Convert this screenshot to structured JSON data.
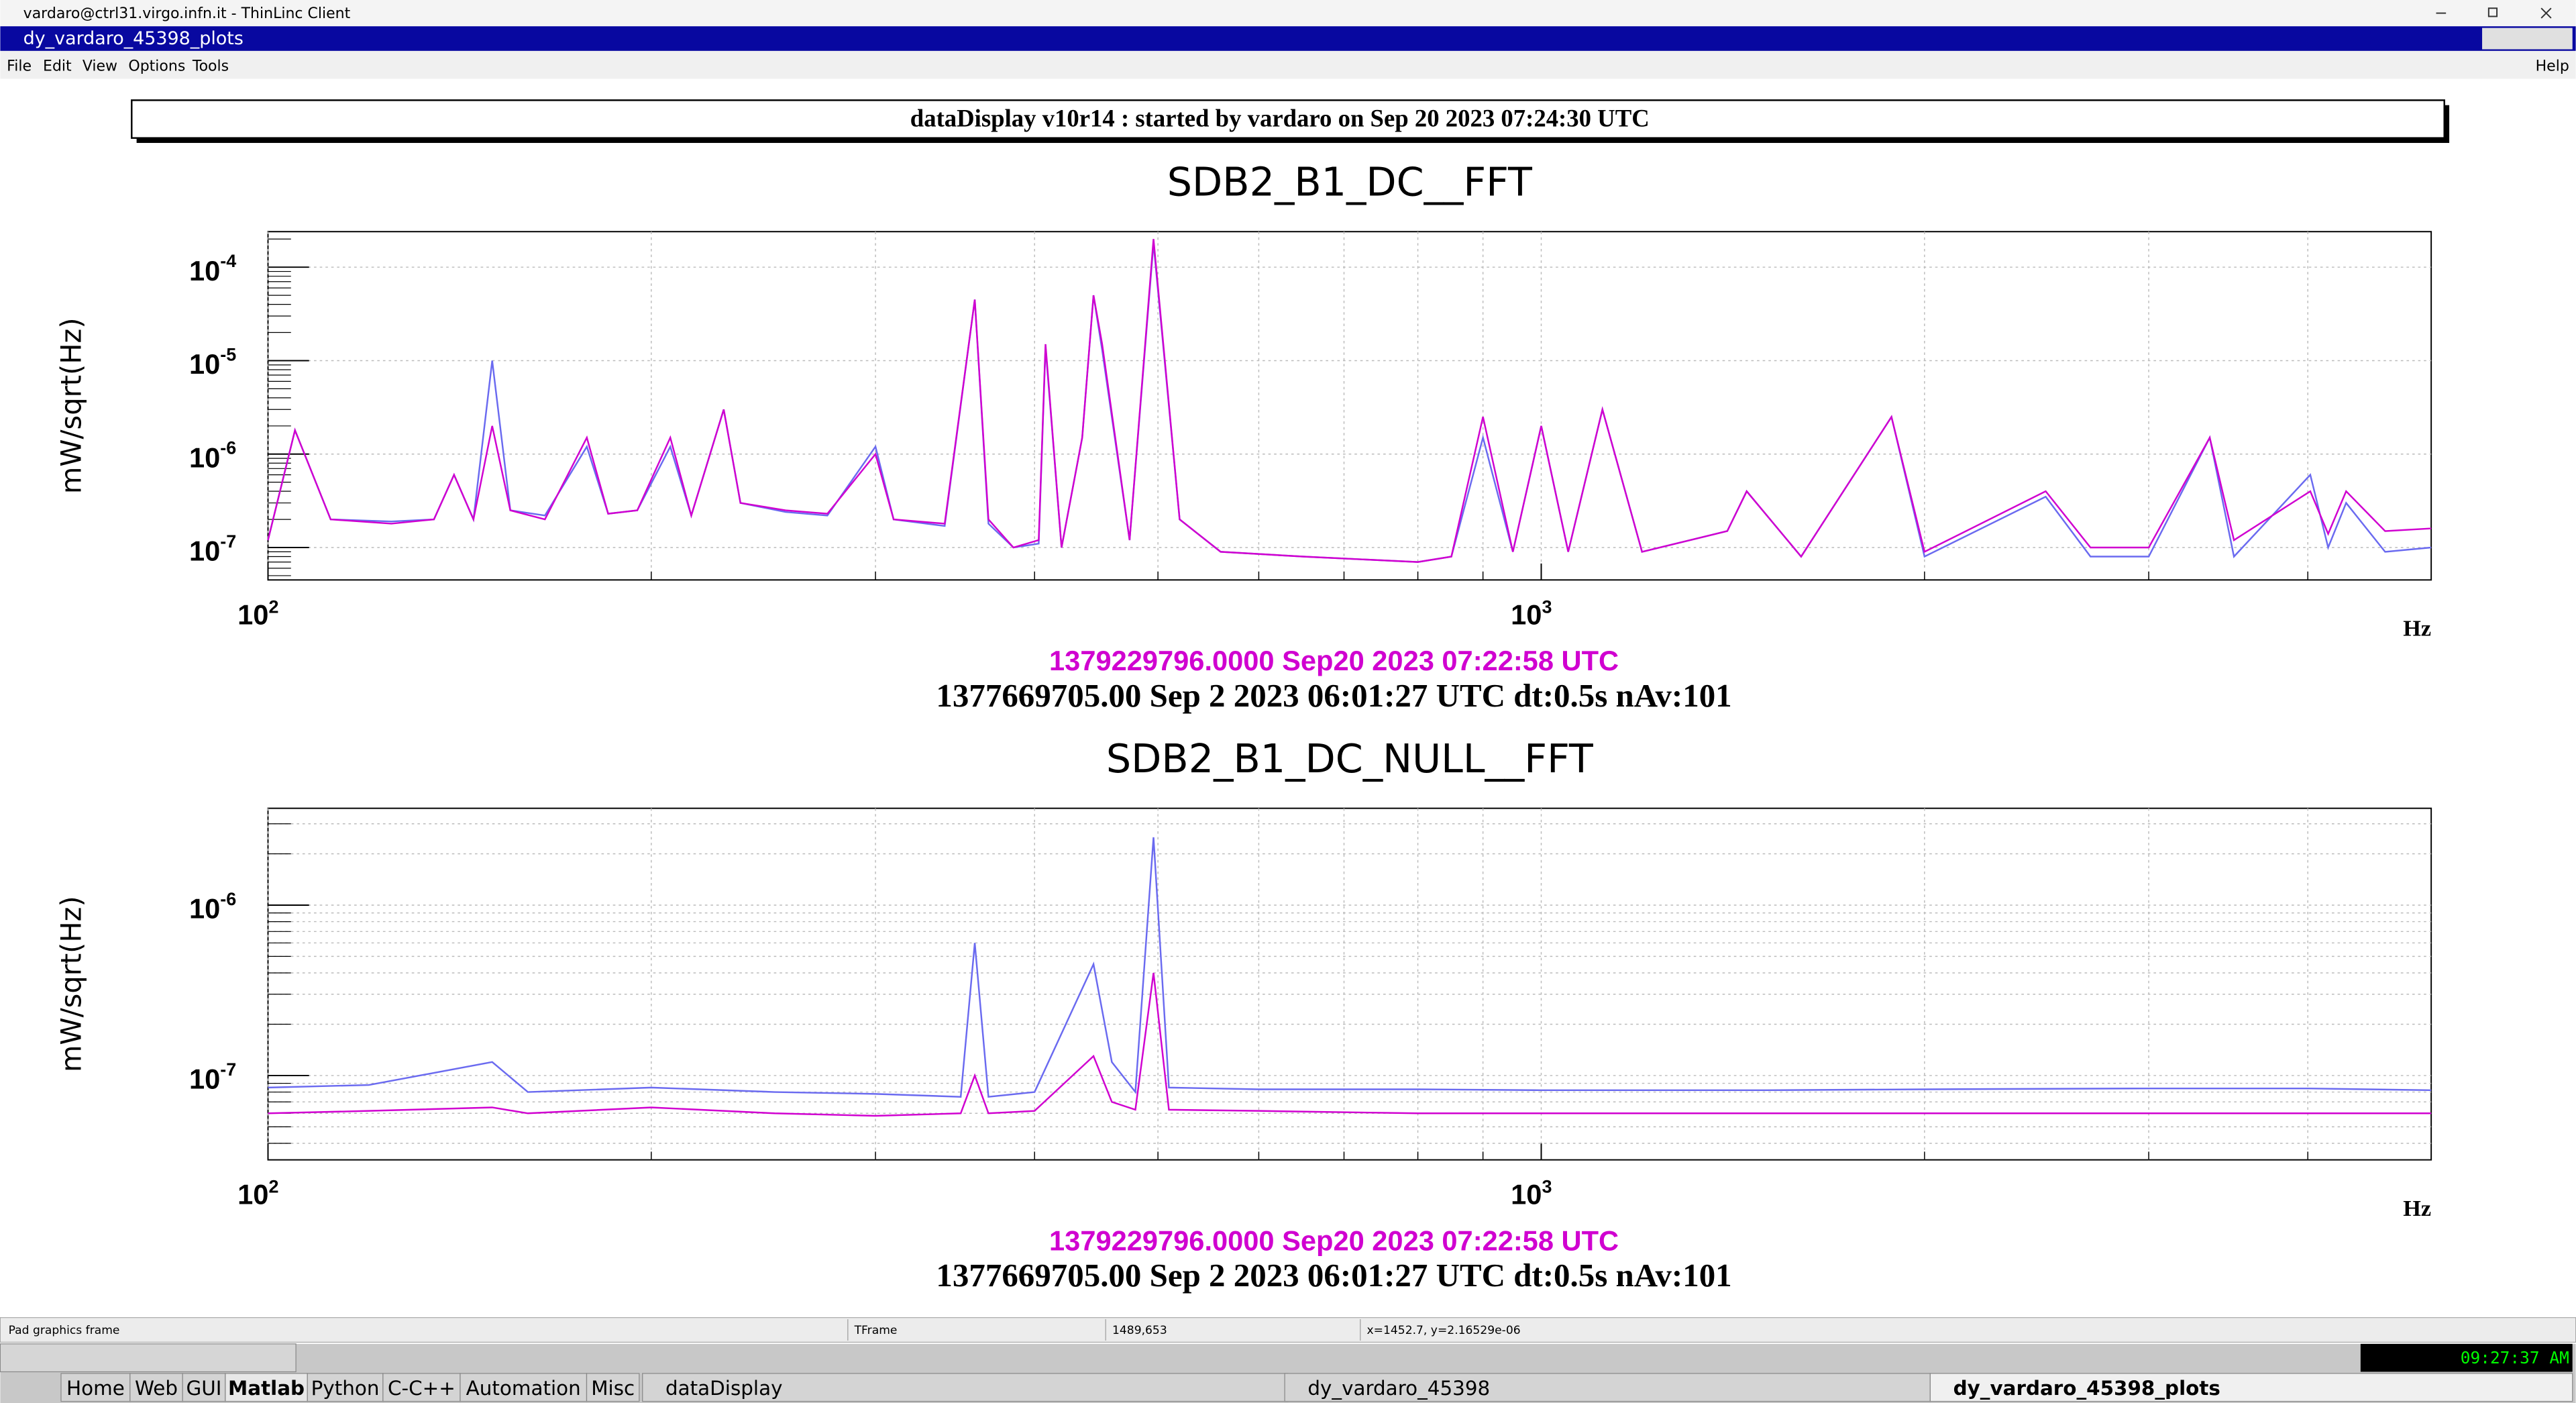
{
  "window_title": "vardaro@ctrl31.virgo.infn.it - ThinLinc Client",
  "app_title": "dy_vardaro_45398_plots",
  "menu": [
    "File",
    "Edit",
    "View",
    "Options",
    "Tools"
  ],
  "help": "Help",
  "header": "dataDisplay v10r14 : started by vardaro on Sep 20 2023 07:24:30 UTC",
  "chart_data": [
    {
      "type": "line",
      "title": "SDB2_B1_DC__FFT",
      "ylabel": "mW/sqrt(Hz)",
      "xlabel": "Hz",
      "xlog": true,
      "ylog": true,
      "grid": true,
      "minor_grid": false,
      "xlim": [
        100,
        5000
      ],
      "ylim": [
        4.5e-08,
        0.00024
      ],
      "xticks": [
        {
          "value": 100,
          "label": "10",
          "exponent": "2"
        },
        {
          "value": 1000,
          "label": "10",
          "exponent": "3"
        }
      ],
      "xminor": [
        200,
        300,
        400,
        500,
        600,
        700,
        800,
        900,
        2000,
        3000,
        4000
      ],
      "yticks": [
        {
          "value": 1e-07,
          "label": "10",
          "exponent": "-7"
        },
        {
          "value": 1e-06,
          "label": "10",
          "exponent": "-6"
        },
        {
          "value": 1e-05,
          "label": "10",
          "exponent": "-5"
        },
        {
          "value": 0.0001,
          "label": "10",
          "exponent": "-4"
        }
      ],
      "yminor": [
        5e-08,
        6e-08,
        7e-08,
        8e-08,
        9e-08,
        2e-07,
        3e-07,
        4e-07,
        5e-07,
        6e-07,
        7e-07,
        8e-07,
        9e-07,
        2e-06,
        3e-06,
        4e-06,
        5e-06,
        6e-06,
        7e-06,
        8e-06,
        9e-06,
        2e-05,
        3e-05,
        4e-05,
        5e-05,
        6e-05,
        7e-05,
        8e-05,
        9e-05,
        0.0002
      ],
      "x": [
        100,
        105,
        112,
        125,
        135,
        140,
        145,
        150,
        155,
        165,
        178,
        185,
        195,
        207,
        215,
        228,
        235,
        255,
        275,
        300,
        310,
        340,
        359,
        368,
        385,
        403,
        408,
        420,
        436,
        445,
        452,
        475,
        496,
        520,
        560,
        650,
        800,
        850,
        900,
        950,
        1000,
        1050,
        1117,
        1200,
        1400,
        1450,
        1600,
        1884,
        2000,
        2490,
        2700,
        3000,
        3350,
        3500,
        4018,
        4150,
        4287,
        4600,
        5000
      ],
      "series": [
        {
          "color": "#6a6af0",
          "values": [
            1.2e-07,
            1.8e-06,
            2e-07,
            1.9e-07,
            2e-07,
            6e-07,
            2e-07,
            1e-05,
            2.5e-07,
            2.2e-07,
            1.2e-06,
            2.3e-07,
            2.5e-07,
            1.2e-06,
            2.2e-07,
            3e-06,
            3e-07,
            2.4e-07,
            2.2e-07,
            1.2e-06,
            2e-07,
            1.7e-07,
            4.5e-05,
            1.8e-07,
            1e-07,
            1.1e-07,
            1.4e-05,
            1e-07,
            1.5e-06,
            5e-05,
            1.3e-05,
            1.2e-07,
            0.00018,
            2e-07,
            9e-08,
            8e-08,
            7e-08,
            8e-08,
            1.5e-06,
            9e-08,
            2e-06,
            9e-08,
            3e-06,
            9e-08,
            1.5e-07,
            4e-07,
            8e-08,
            2.5e-06,
            8e-08,
            3.5e-07,
            8e-08,
            8e-08,
            1.5e-06,
            8e-08,
            6e-07,
            1e-07,
            3e-07,
            9e-08,
            1e-07
          ]
        },
        {
          "color": "#d000d0",
          "values": [
            1.2e-07,
            1.8e-06,
            2e-07,
            1.8e-07,
            2e-07,
            6e-07,
            2e-07,
            2e-06,
            2.5e-07,
            2e-07,
            1.5e-06,
            2.3e-07,
            2.5e-07,
            1.5e-06,
            2.2e-07,
            3e-06,
            3e-07,
            2.5e-07,
            2.3e-07,
            1e-06,
            2e-07,
            1.8e-07,
            4.5e-05,
            2e-07,
            1e-07,
            1.2e-07,
            1.5e-05,
            1e-07,
            1.5e-06,
            5e-05,
            1.5e-05,
            1.2e-07,
            0.0002,
            2e-07,
            9e-08,
            8e-08,
            7e-08,
            8e-08,
            2.5e-06,
            9e-08,
            2e-06,
            9e-08,
            3e-06,
            9e-08,
            1.5e-07,
            4e-07,
            8e-08,
            2.5e-06,
            9e-08,
            4e-07,
            1e-07,
            1e-07,
            1.5e-06,
            1.2e-07,
            4e-07,
            1.4e-07,
            4e-07,
            1.5e-07,
            1.6e-07
          ]
        }
      ],
      "annotations": [
        {
          "text": "1379229796.0000 Sep20 2023 07:22:58 UTC",
          "color": "#d000d0"
        },
        {
          "text": "1377669705.00 Sep 2 2023 06:01:27 UTC dt:0.5s nAv:101",
          "color": "#000000"
        }
      ]
    },
    {
      "type": "line",
      "title": "SDB2_B1_DC_NULL__FFT",
      "ylabel": "mW/sqrt(Hz)",
      "xlabel": "Hz",
      "xlog": true,
      "ylog": true,
      "grid": true,
      "minor_grid": true,
      "xlim": [
        100,
        5000
      ],
      "ylim": [
        3.2e-08,
        3.7e-06
      ],
      "xticks": [
        {
          "value": 100,
          "label": "10",
          "exponent": "2"
        },
        {
          "value": 1000,
          "label": "10",
          "exponent": "3"
        }
      ],
      "xminor": [
        200,
        300,
        400,
        500,
        600,
        700,
        800,
        900,
        2000,
        3000,
        4000
      ],
      "yticks": [
        {
          "value": 1e-07,
          "label": "10",
          "exponent": "-7"
        },
        {
          "value": 1e-06,
          "label": "10",
          "exponent": "-6"
        }
      ],
      "yminor": [
        4e-08,
        5e-08,
        6e-08,
        7e-08,
        8e-08,
        9e-08,
        2e-07,
        3e-07,
        4e-07,
        5e-07,
        6e-07,
        7e-07,
        8e-07,
        9e-07,
        2e-06,
        3e-06
      ],
      "x": [
        100,
        120,
        150,
        160,
        200,
        250,
        300,
        350,
        359,
        368,
        400,
        445,
        460,
        480,
        496,
        510,
        600,
        800,
        1000,
        1500,
        2000,
        3000,
        4000,
        5000
      ],
      "series": [
        {
          "color": "#6a6af0",
          "values": [
            8.5e-08,
            8.8e-08,
            1.2e-07,
            8e-08,
            8.5e-08,
            8e-08,
            7.8e-08,
            7.5e-08,
            6e-07,
            7.5e-08,
            8e-08,
            4.5e-07,
            1.2e-07,
            8e-08,
            2.5e-06,
            8.5e-08,
            8.3e-08,
            8.3e-08,
            8.2e-08,
            8.2e-08,
            8.3e-08,
            8.4e-08,
            8.4e-08,
            8.2e-08
          ]
        },
        {
          "color": "#d000d0",
          "values": [
            6e-08,
            6.2e-08,
            6.5e-08,
            6e-08,
            6.5e-08,
            6e-08,
            5.8e-08,
            6e-08,
            1e-07,
            6e-08,
            6.2e-08,
            1.3e-07,
            7e-08,
            6.3e-08,
            4e-07,
            6.3e-08,
            6.2e-08,
            6e-08,
            6e-08,
            6e-08,
            6e-08,
            6e-08,
            6e-08,
            6e-08
          ]
        }
      ],
      "annotations": [
        {
          "text": "1379229796.0000 Sep20 2023 07:22:58 UTC",
          "color": "#d000d0"
        },
        {
          "text": "1377669705.00 Sep 2 2023 06:01:27 UTC dt:0.5s nAv:101",
          "color": "#000000"
        }
      ]
    }
  ],
  "status": [
    "Pad graphics frame",
    "TFrame",
    "1489,653",
    "x=1452.7, y=2.16529e-06"
  ],
  "taskbar": {
    "buttons": [
      "Home",
      "Web",
      "GUI",
      "Matlab",
      "Python",
      "C-C++",
      "Automation",
      "Misc"
    ],
    "tasks": [
      "dataDisplay",
      "dy_vardaro_45398",
      "dy_vardaro_45398_plots"
    ],
    "clock": "09:27:37 AM"
  }
}
